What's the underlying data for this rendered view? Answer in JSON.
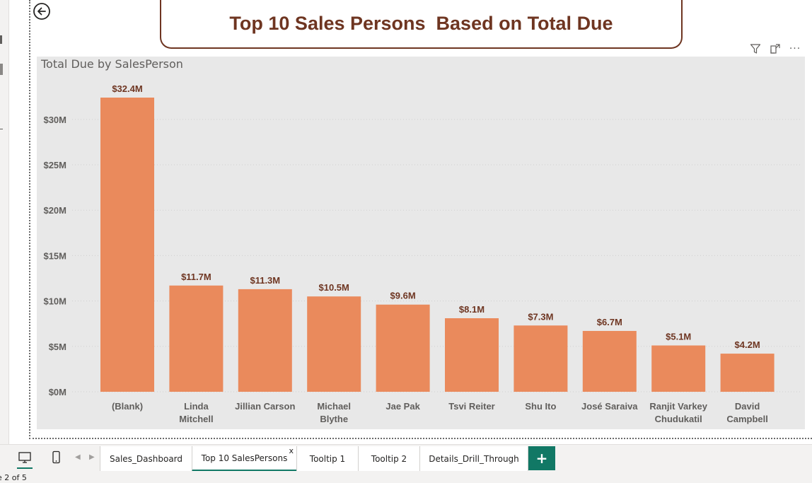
{
  "report": {
    "title": "Top 10 Sales Persons  Based on Total Due",
    "visual_title": "Total Due by SalesPerson"
  },
  "icons": {
    "back": "back-arrow-circle-icon",
    "filter": "filter-icon",
    "focus": "focus-mode-icon",
    "more": "more-options-icon",
    "desktop": "desktop-view-icon",
    "mobile": "mobile-view-icon",
    "prev": "chevron-left-icon",
    "next": "chevron-right-icon"
  },
  "toolbar": {
    "more_label": "···"
  },
  "colors": {
    "bar": "#EA8A5C",
    "title_brown": "#6E3521",
    "data_label": "#6E3521",
    "axis_text": "#605E5C",
    "accent_tab": "#117865"
  },
  "chart_data": {
    "type": "bar",
    "title": "Total Due by SalesPerson",
    "categories": [
      "(Blank)",
      "Linda Mitchell",
      "Jillian Carson",
      "Michael Blythe",
      "Jae Pak",
      "Tsvi Reiter",
      "Shu Ito",
      "José Saraiva",
      "Ranjit Varkey Chudukatil",
      "David Campbell"
    ],
    "category_lines": [
      [
        "(Blank)"
      ],
      [
        "Linda",
        "Mitchell"
      ],
      [
        "Jillian Carson"
      ],
      [
        "Michael",
        "Blythe"
      ],
      [
        "Jae Pak"
      ],
      [
        "Tsvi Reiter"
      ],
      [
        "Shu Ito"
      ],
      [
        "José Saraiva"
      ],
      [
        "Ranjit Varkey",
        "Chudukatil"
      ],
      [
        "David",
        "Campbell"
      ]
    ],
    "values": [
      32.4,
      11.7,
      11.3,
      10.5,
      9.6,
      8.1,
      7.3,
      6.7,
      5.1,
      4.2
    ],
    "data_labels": [
      "$32.4M",
      "$11.7M",
      "$11.3M",
      "$10.5M",
      "$9.6M",
      "$8.1M",
      "$7.3M",
      "$6.7M",
      "$5.1M",
      "$4.2M"
    ],
    "y_ticks": [
      0,
      5,
      10,
      15,
      20,
      25,
      30
    ],
    "y_tick_labels": [
      "$0M",
      "$5M",
      "$10M",
      "$15M",
      "$20M",
      "$25M",
      "$30M"
    ],
    "ylim": [
      0,
      32.4
    ],
    "xlabel": "",
    "ylabel": "",
    "grid": true,
    "legend": "none"
  },
  "tabs": [
    {
      "label": "Sales_Dashboard",
      "active": false
    },
    {
      "label": "Top 10 SalesPersons",
      "active": true,
      "close": "x"
    },
    {
      "label": "Tooltip 1",
      "active": false
    },
    {
      "label": "Tooltip 2",
      "active": false
    },
    {
      "label": "Details_Drill_Through",
      "active": false
    }
  ],
  "add_tab_label": "+",
  "status": {
    "page_indicator": "e 2 of 5"
  }
}
